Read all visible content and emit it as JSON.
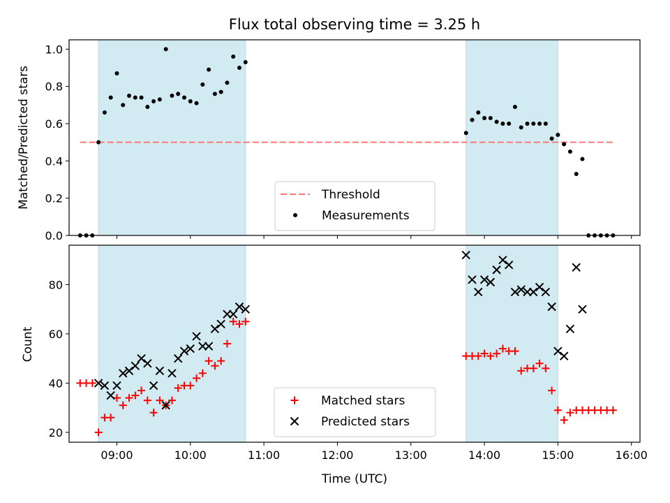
{
  "figure": {
    "title": "Flux total observing time = 3.25 h",
    "xlabel": "Time (UTC)"
  },
  "colors": {
    "band": "#add8e6",
    "threshold": "#ff7777",
    "matched": "#ff0000",
    "predicted": "#000000",
    "measurement": "#000000"
  },
  "chart_data": [
    {
      "type": "scatter",
      "ylabel": "Matched/Predicted stars",
      "xlim": [
        "08:21",
        "16:07"
      ],
      "ylim": [
        0,
        1.05
      ],
      "yticks": [
        0.0,
        0.2,
        0.4,
        0.6,
        0.8,
        1.0
      ],
      "ytick_labels": [
        "0.0",
        "0.2",
        "0.4",
        "0.6",
        "0.8",
        "1.0"
      ],
      "xticks": [
        "09:00",
        "10:00",
        "11:00",
        "12:00",
        "13:00",
        "14:00",
        "15:00",
        "16:00"
      ],
      "xtick_labels": [
        "",
        "",
        "",
        "",
        "",
        "",
        "",
        ""
      ],
      "shaded_intervals": [
        [
          "08:45",
          "10:45"
        ],
        [
          "13:45",
          "15:00"
        ]
      ],
      "threshold": {
        "name": "Threshold",
        "y": 0.5,
        "x_range": [
          "08:30",
          "15:45"
        ]
      },
      "legend_placement": "lower center",
      "series": [
        {
          "name": "Measurements",
          "x": [
            "08:30",
            "08:35",
            "08:40",
            "08:45",
            "08:50",
            "08:55",
            "09:00",
            "09:05",
            "09:10",
            "09:15",
            "09:20",
            "09:25",
            "09:30",
            "09:35",
            "09:40",
            "09:45",
            "09:50",
            "09:55",
            "10:00",
            "10:05",
            "10:10",
            "10:15",
            "10:20",
            "10:25",
            "10:30",
            "10:35",
            "10:40",
            "10:45",
            "13:45",
            "13:50",
            "13:55",
            "14:00",
            "14:05",
            "14:10",
            "14:15",
            "14:20",
            "14:25",
            "14:30",
            "14:35",
            "14:40",
            "14:45",
            "14:50",
            "14:55",
            "15:00",
            "15:05",
            "15:10",
            "15:15",
            "15:20",
            "15:25",
            "15:30",
            "15:35",
            "15:40",
            "15:45"
          ],
          "y": [
            0.0,
            0.0,
            0.0,
            0.5,
            0.66,
            0.74,
            0.87,
            0.7,
            0.75,
            0.74,
            0.74,
            0.69,
            0.72,
            0.73,
            1.0,
            0.75,
            0.76,
            0.74,
            0.72,
            0.71,
            0.81,
            0.89,
            0.76,
            0.77,
            0.82,
            0.96,
            0.9,
            0.93,
            0.55,
            0.62,
            0.66,
            0.63,
            0.63,
            0.61,
            0.6,
            0.6,
            0.69,
            0.58,
            0.6,
            0.6,
            0.6,
            0.6,
            0.52,
            0.54,
            0.49,
            0.45,
            0.33,
            0.41,
            0.0,
            0.0,
            0.0,
            0.0,
            0.0
          ]
        }
      ]
    },
    {
      "type": "scatter",
      "ylabel": "Count",
      "xlim": [
        "08:21",
        "16:07"
      ],
      "ylim": [
        16,
        96
      ],
      "yticks": [
        20,
        40,
        60,
        80
      ],
      "ytick_labels": [
        "20",
        "40",
        "60",
        "80"
      ],
      "xticks": [
        "09:00",
        "10:00",
        "11:00",
        "12:00",
        "13:00",
        "14:00",
        "15:00",
        "16:00"
      ],
      "xtick_labels": [
        "09:00",
        "10:00",
        "11:00",
        "12:00",
        "13:00",
        "14:00",
        "15:00",
        "16:00"
      ],
      "shaded_intervals": [
        [
          "08:45",
          "10:45"
        ],
        [
          "13:45",
          "15:00"
        ]
      ],
      "legend_placement": "lower center",
      "series": [
        {
          "name": "Matched stars",
          "x": [
            "08:30",
            "08:35",
            "08:40",
            "08:45",
            "08:50",
            "08:55",
            "09:00",
            "09:05",
            "09:10",
            "09:15",
            "09:20",
            "09:25",
            "09:30",
            "09:35",
            "09:40",
            "09:45",
            "09:50",
            "09:55",
            "10:00",
            "10:05",
            "10:10",
            "10:15",
            "10:20",
            "10:25",
            "10:30",
            "10:35",
            "10:40",
            "10:45",
            "13:45",
            "13:50",
            "13:55",
            "14:00",
            "14:05",
            "14:10",
            "14:15",
            "14:20",
            "14:25",
            "14:30",
            "14:35",
            "14:40",
            "14:45",
            "14:50",
            "14:55",
            "15:00",
            "15:05",
            "15:10",
            "15:15",
            "15:20",
            "15:25",
            "15:30",
            "15:35",
            "15:40",
            "15:45"
          ],
          "y": [
            40,
            40,
            40,
            20,
            26,
            26,
            34,
            31,
            34,
            35,
            37,
            33,
            28,
            33,
            31,
            33,
            38,
            39,
            39,
            42,
            44,
            49,
            47,
            49,
            56,
            65,
            64,
            65,
            51,
            51,
            51,
            52,
            51,
            52,
            54,
            53,
            53,
            45,
            46,
            46,
            48,
            46,
            37,
            29,
            25,
            28,
            29,
            29,
            29,
            29,
            29,
            29,
            29
          ]
        },
        {
          "name": "Predicted stars",
          "x": [
            "08:45",
            "08:50",
            "08:55",
            "09:00",
            "09:05",
            "09:10",
            "09:15",
            "09:20",
            "09:25",
            "09:30",
            "09:35",
            "09:40",
            "09:45",
            "09:50",
            "09:55",
            "10:00",
            "10:05",
            "10:10",
            "10:15",
            "10:20",
            "10:25",
            "10:30",
            "10:35",
            "10:40",
            "10:45",
            "13:45",
            "13:50",
            "13:55",
            "14:00",
            "14:05",
            "14:10",
            "14:15",
            "14:20",
            "14:25",
            "14:30",
            "14:35",
            "14:40",
            "14:45",
            "14:50",
            "14:55",
            "15:00",
            "15:05",
            "15:10",
            "15:15",
            "15:20"
          ],
          "y": [
            40,
            39,
            35,
            39,
            44,
            45,
            47,
            50,
            48,
            39,
            45,
            31,
            44,
            50,
            53,
            54,
            59,
            55,
            55,
            62,
            64,
            68,
            68,
            71,
            70,
            92,
            82,
            77,
            82,
            81,
            86,
            90,
            88,
            77,
            78,
            77,
            77,
            79,
            77,
            71,
            53,
            51,
            62,
            87,
            70
          ]
        }
      ]
    }
  ]
}
